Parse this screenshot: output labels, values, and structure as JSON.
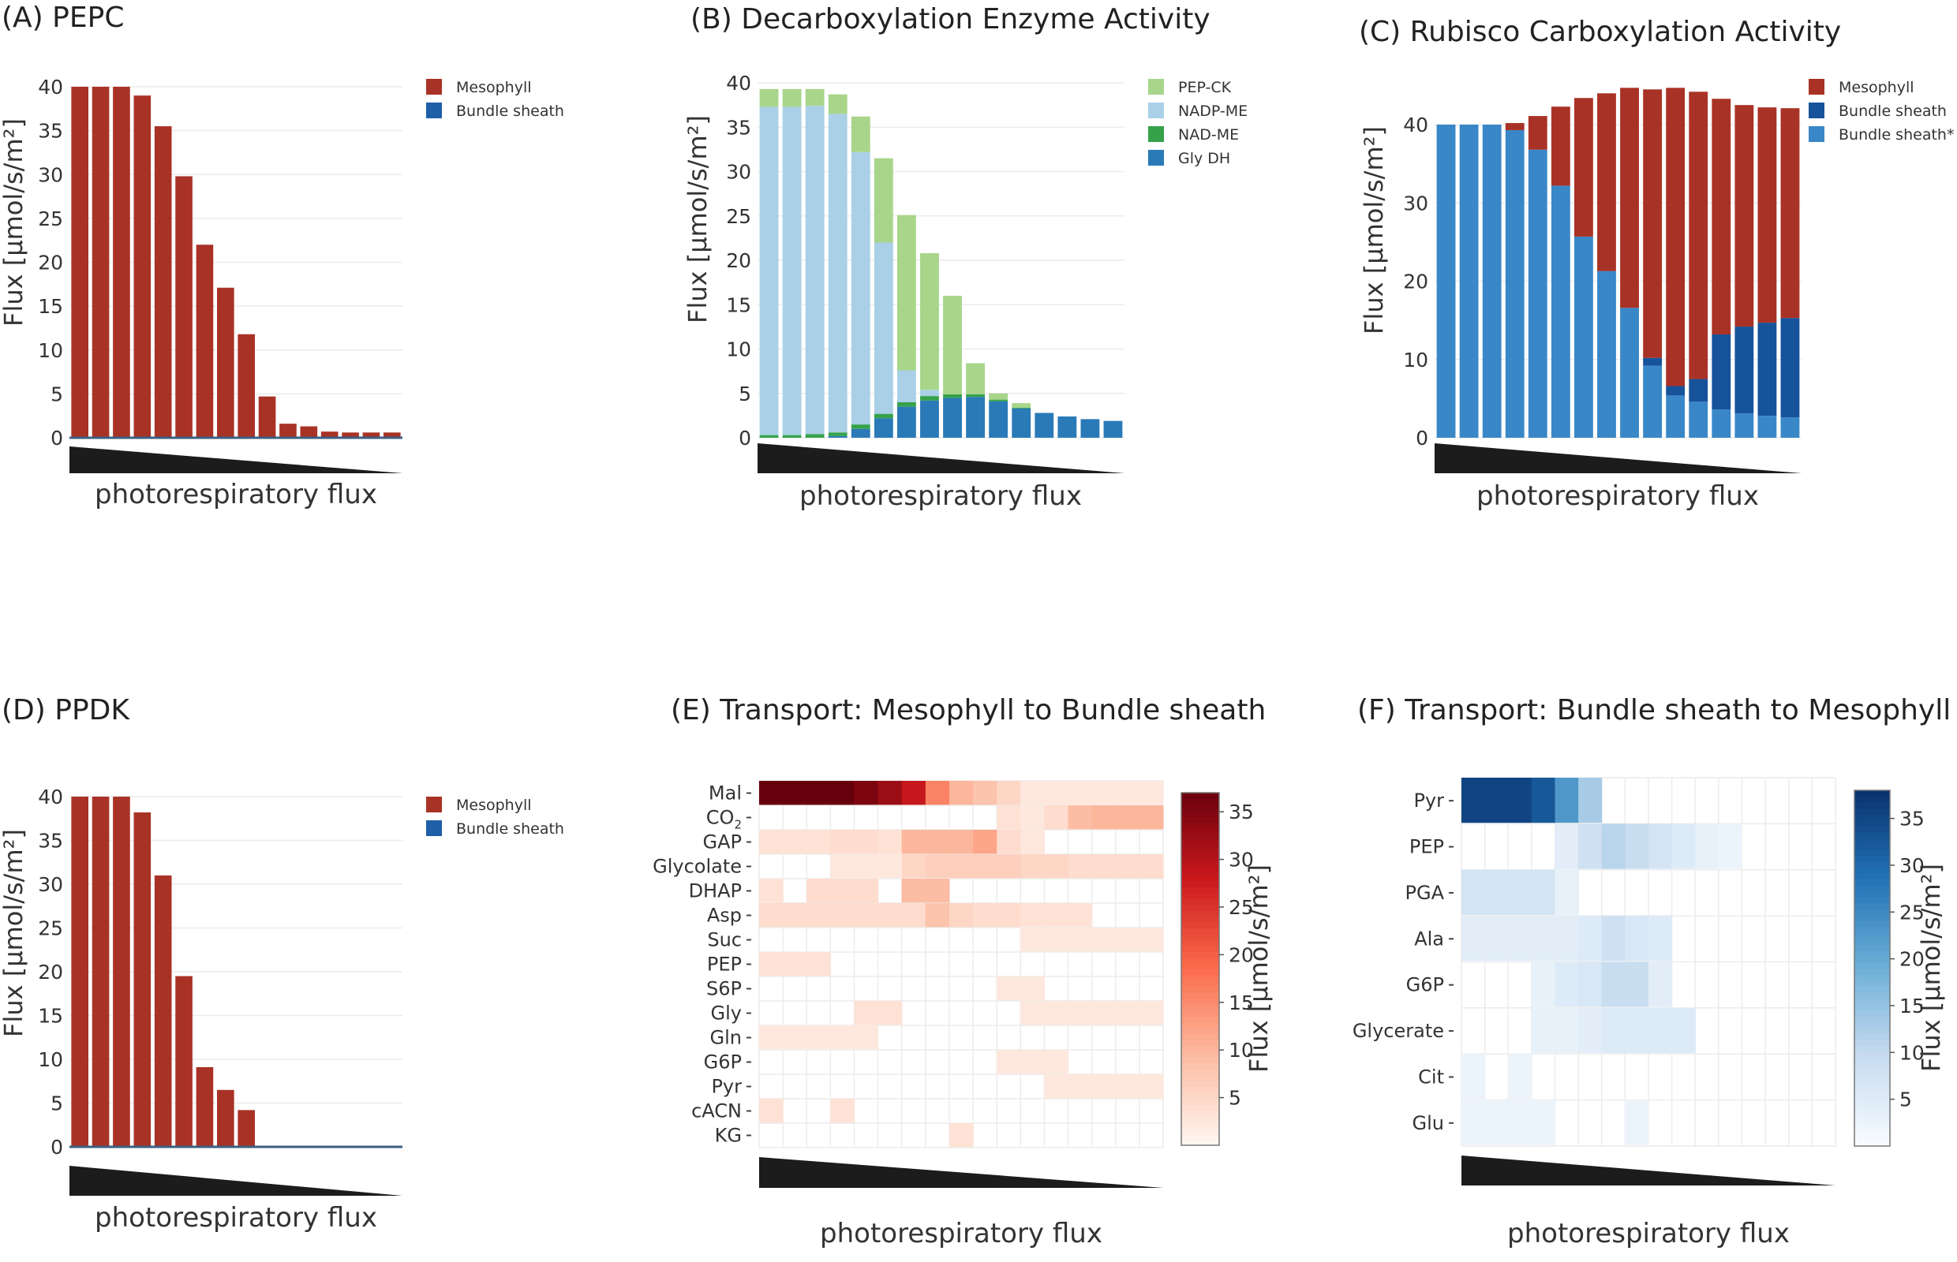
{
  "xlabel": "photorespiratory flux",
  "flux_label": "Flux [µmol/s/m²]",
  "chart_data": [
    {
      "id": "A",
      "type": "bar",
      "title": "(A) PEPC",
      "ylabel": "Flux [µmol/s/m²]",
      "xlabel": "photorespiratory flux",
      "ylim": [
        0,
        40
      ],
      "yticks": [
        0,
        5,
        10,
        15,
        20,
        25,
        30,
        35,
        40
      ],
      "legend": {
        "position": "top-right",
        "entries": [
          {
            "name": "Mesophyll",
            "color": "#a93226"
          },
          {
            "name": "Bundle sheath",
            "color": "#1f5fa8"
          }
        ]
      },
      "series": [
        {
          "name": "Mesophyll",
          "color": "#a93226",
          "values": [
            40,
            40,
            40,
            39,
            35.5,
            29.8,
            22,
            17.1,
            11.8,
            4.7,
            1.6,
            1.3,
            0.7,
            0.6,
            0.6,
            0.6
          ]
        },
        {
          "name": "Bundle sheath",
          "color": "#1f5fa8",
          "values": [
            0,
            0,
            0,
            0,
            0,
            0,
            0,
            0,
            0,
            0,
            0,
            0,
            0,
            0,
            0,
            0
          ]
        }
      ]
    },
    {
      "id": "B",
      "type": "bar",
      "title": "(B)  Decarboxylation Enzyme Activity",
      "ylabel": "Flux [µmol/s/m²]",
      "xlabel": "photorespiratory flux",
      "ylim": [
        0,
        40
      ],
      "yticks": [
        0,
        5,
        10,
        15,
        20,
        25,
        30,
        35,
        40
      ],
      "legend": {
        "position": "top-right",
        "entries": [
          {
            "name": "PEP-CK",
            "color": "#a8d58a"
          },
          {
            "name": "NADP-ME",
            "color": "#a9d0e6"
          },
          {
            "name": "NAD-ME",
            "color": "#35a24a"
          },
          {
            "name": "Gly DH",
            "color": "#2a7ab8"
          }
        ]
      },
      "stack_order": [
        "Gly DH",
        "NAD-ME",
        "NADP-ME",
        "PEP-CK"
      ],
      "series": [
        {
          "name": "Gly DH",
          "color": "#2a7ab8",
          "values": [
            0,
            0,
            0,
            0.2,
            1,
            2.2,
            3.5,
            4.2,
            4.5,
            4.6,
            4.1,
            3.3,
            2.8,
            2.4,
            2.1,
            1.9
          ]
        },
        {
          "name": "NAD-ME",
          "color": "#35a24a",
          "values": [
            0.3,
            0.3,
            0.4,
            0.4,
            0.5,
            0.5,
            0.5,
            0.5,
            0.4,
            0.3,
            0.2,
            0.1,
            0,
            0,
            0,
            0
          ]
        },
        {
          "name": "NADP-ME",
          "color": "#a9d0e6",
          "values": [
            37,
            37,
            37,
            35.9,
            30.7,
            19.3,
            3.6,
            0.7,
            0,
            0,
            0,
            0,
            0,
            0,
            0,
            0
          ]
        },
        {
          "name": "PEP-CK",
          "color": "#a8d58a",
          "values": [
            2,
            2,
            1.9,
            2.2,
            4,
            9.5,
            17.5,
            15.4,
            11.1,
            3.5,
            0.7,
            0.5,
            0,
            0,
            0,
            0
          ]
        }
      ]
    },
    {
      "id": "C",
      "type": "bar",
      "title": "(C)  Rubisco Carboxylation Activity",
      "ylabel": "Flux [µmol/s/m²]",
      "xlabel": "photorespiratory flux",
      "ylim": [
        0,
        40
      ],
      "yticks": [
        0,
        10,
        20,
        30,
        40
      ],
      "legend": {
        "position": "top-right",
        "entries": [
          {
            "name": "Mesophyll",
            "color": "#a93226"
          },
          {
            "name": "Bundle sheath",
            "color": "#17539b"
          },
          {
            "name": "Bundle sheath*",
            "color": "#3987c7"
          }
        ]
      },
      "stack_order": [
        "Bundle sheath*",
        "Bundle sheath",
        "Mesophyll"
      ],
      "series": [
        {
          "name": "Bundle sheath*",
          "color": "#3987c7",
          "values": [
            40,
            40,
            40,
            39.3,
            36.8,
            32.2,
            25.7,
            21.3,
            16.6,
            9.2,
            5.4,
            4.6,
            3.6,
            3.1,
            2.8,
            2.6
          ]
        },
        {
          "name": "Bundle sheath",
          "color": "#17539b",
          "values": [
            0,
            0,
            0,
            0,
            0,
            0,
            0,
            0,
            0,
            1,
            1.2,
            2.9,
            9.6,
            11.1,
            11.9,
            12.7
          ]
        },
        {
          "name": "Mesophyll",
          "color": "#a93226",
          "values": [
            0,
            0,
            0,
            0.9,
            4.3,
            10.1,
            17.7,
            22.7,
            28.1,
            34.3,
            38.1,
            36.7,
            30.1,
            28.3,
            27.5,
            26.8
          ]
        }
      ]
    },
    {
      "id": "D",
      "type": "bar",
      "title": "(D) PPDK",
      "ylabel": "Flux [µmol/s/m²]",
      "xlabel": "photorespiratory flux",
      "ylim": [
        0,
        40
      ],
      "yticks": [
        0,
        5,
        10,
        15,
        20,
        25,
        30,
        35,
        40
      ],
      "legend": {
        "position": "top-right",
        "entries": [
          {
            "name": "Mesophyll",
            "color": "#a93226"
          },
          {
            "name": "Bundle sheath",
            "color": "#1f5fa8"
          }
        ]
      },
      "series": [
        {
          "name": "Mesophyll",
          "color": "#a93226",
          "values": [
            40,
            40,
            40,
            38.2,
            31,
            19.5,
            9.1,
            6.5,
            4.2,
            0,
            0,
            0,
            0,
            0,
            0,
            0
          ]
        },
        {
          "name": "Bundle sheath",
          "color": "#1f5fa8",
          "values": [
            0,
            0,
            0,
            0,
            0,
            0,
            0,
            0,
            0,
            0,
            0,
            0,
            0,
            0,
            0,
            0
          ]
        }
      ]
    },
    {
      "id": "E",
      "type": "heatmap",
      "title": "(E) Transport: Mesophyll to Bundle sheath",
      "xlabel": "photorespiratory flux",
      "colorbar_label": "Flux [µmol/s/m²]",
      "colorbar_ticks": [
        5,
        10,
        15,
        20,
        25,
        30,
        35
      ],
      "vmax": 37,
      "colorscale": [
        "#fff5f0",
        "#fcbba1",
        "#fb6a4a",
        "#cb181d",
        "#67000d"
      ],
      "rows": [
        "Mal",
        "CO2",
        "GAP",
        "Glycolate",
        "DHAP",
        "Asp",
        "Suc",
        "PEP",
        "S6P",
        "Gly",
        "Gln",
        "G6P",
        "Pyr",
        "cACN",
        "KG"
      ],
      "row_labels_subscript": {
        "CO2": "2"
      },
      "matrix": [
        [
          37,
          37,
          37,
          37,
          35,
          32,
          28,
          15,
          9,
          7,
          4,
          1,
          1,
          1,
          1,
          1,
          1
        ],
        [
          0,
          0,
          0,
          0,
          0,
          0,
          0,
          0,
          0,
          0,
          2,
          1,
          3,
          8,
          9,
          9,
          9
        ],
        [
          2,
          2,
          2,
          3,
          3,
          2,
          9,
          9,
          9,
          11,
          3,
          1,
          0,
          0,
          0,
          0,
          0
        ],
        [
          0,
          0,
          0,
          1,
          1,
          1,
          4,
          5,
          5,
          5,
          5,
          4,
          4,
          3,
          3,
          3,
          3
        ],
        [
          2,
          0,
          3,
          3,
          3,
          0,
          8,
          8,
          0,
          0,
          0,
          0,
          0,
          0,
          0,
          0,
          0
        ],
        [
          3,
          3,
          3,
          3,
          3,
          3,
          3,
          7,
          4,
          3,
          3,
          2,
          2,
          2,
          0,
          0,
          0
        ],
        [
          0,
          0,
          0,
          0,
          0,
          0,
          0,
          0,
          0,
          0,
          0,
          1,
          1,
          1,
          1,
          1,
          1
        ],
        [
          2,
          2,
          2,
          0,
          0,
          0,
          0,
          0,
          0,
          0,
          0,
          0,
          0,
          0,
          0,
          0,
          0
        ],
        [
          0,
          0,
          0,
          0,
          0,
          0,
          0,
          0,
          0,
          0,
          1,
          1,
          0,
          0,
          0,
          0,
          0
        ],
        [
          0,
          0,
          0,
          0,
          2,
          2,
          0,
          0,
          0,
          0,
          0,
          1,
          1,
          1,
          1,
          1,
          1
        ],
        [
          1,
          1,
          1,
          1,
          1,
          0,
          0,
          0,
          0,
          0,
          0,
          0,
          0,
          0,
          0,
          0,
          0
        ],
        [
          0,
          0,
          0,
          0,
          0,
          0,
          0,
          0,
          0,
          0,
          1,
          1,
          1,
          0,
          0,
          0,
          0
        ],
        [
          0,
          0,
          0,
          0,
          0,
          0,
          0,
          0,
          0,
          0,
          0,
          0,
          1,
          1,
          1,
          1,
          1
        ],
        [
          2,
          0,
          0,
          2,
          0,
          0,
          0,
          0,
          0,
          0,
          0,
          0,
          0,
          0,
          0,
          0,
          0
        ],
        [
          0,
          0,
          0,
          0,
          0,
          0,
          0,
          0,
          2,
          0,
          0,
          0,
          0,
          0,
          0,
          0,
          0
        ]
      ]
    },
    {
      "id": "F",
      "type": "heatmap",
      "title": "(F) Transport:  Bundle sheath to Mesophyll",
      "xlabel": "photorespiratory flux",
      "colorbar_label": "Flux [µmol/s/m²]",
      "colorbar_ticks": [
        5,
        10,
        15,
        20,
        25,
        30,
        35
      ],
      "vmax": 38,
      "colorscale": [
        "#f7fbff",
        "#c6dbef",
        "#6baed6",
        "#2171b5",
        "#08306b"
      ],
      "rows": [
        "Pyr",
        "PEP",
        "PGA",
        "Ala",
        "G6P",
        "Glycerate",
        "Cit",
        "Glu"
      ],
      "matrix": [
        [
          35,
          35,
          35,
          32,
          22,
          12,
          0,
          0,
          0,
          0,
          0,
          0,
          0,
          0,
          0,
          0
        ],
        [
          0,
          0,
          0,
          0,
          3,
          7,
          10,
          8,
          6,
          4,
          2,
          1,
          0,
          0,
          0,
          0
        ],
        [
          6,
          6,
          6,
          6,
          2,
          0,
          0,
          0,
          0,
          0,
          0,
          0,
          0,
          0,
          0,
          0
        ],
        [
          3,
          3,
          3,
          3,
          3,
          4,
          7,
          5,
          4,
          0,
          0,
          0,
          0,
          0,
          0,
          0
        ],
        [
          0,
          0,
          0,
          2,
          4,
          5,
          8,
          8,
          3,
          0,
          0,
          0,
          0,
          0,
          0,
          0
        ],
        [
          0,
          0,
          0,
          2,
          2,
          3,
          4,
          4,
          4,
          4,
          0,
          0,
          0,
          0,
          0,
          0
        ],
        [
          1,
          0,
          1,
          0,
          0,
          0,
          0,
          0,
          0,
          0,
          0,
          0,
          0,
          0,
          0,
          0
        ],
        [
          1,
          1,
          1,
          1,
          0,
          0,
          0,
          1,
          0,
          0,
          0,
          0,
          0,
          0,
          0,
          0
        ]
      ]
    }
  ]
}
